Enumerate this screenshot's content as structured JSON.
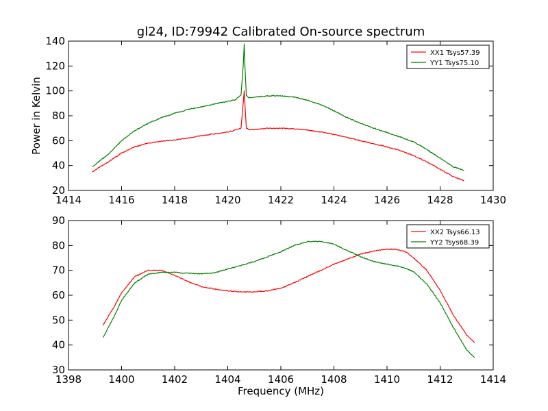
{
  "figure": {
    "title": "gl24, ID:79942 Calibrated On-source spectrum",
    "xlabel": "Frequency (MHz)"
  },
  "chart_data": [
    {
      "type": "line",
      "title": "gl24, ID:79942 Calibrated On-source spectrum",
      "xlabel": "",
      "ylabel": "Power in Kelvin",
      "xlim": [
        1414,
        1430
      ],
      "ylim": [
        20,
        140
      ],
      "xticks": [
        1414,
        1416,
        1418,
        1420,
        1422,
        1424,
        1426,
        1428,
        1430
      ],
      "yticks": [
        20,
        40,
        60,
        80,
        100,
        120,
        140
      ],
      "grid": false,
      "legend_position": "top-right",
      "series": [
        {
          "name": "XX1 Tsys57.39",
          "color": "#ff0000",
          "x": [
            1414.9,
            1415.5,
            1416.0,
            1416.5,
            1417.0,
            1417.5,
            1418.0,
            1418.5,
            1419.0,
            1419.5,
            1420.0,
            1420.3,
            1420.5,
            1420.58,
            1420.62,
            1420.65,
            1420.7,
            1420.8,
            1421.0,
            1421.5,
            1422.0,
            1422.5,
            1423.0,
            1423.5,
            1424.0,
            1424.5,
            1425.0,
            1425.5,
            1426.0,
            1426.5,
            1427.0,
            1427.5,
            1428.0,
            1428.5,
            1428.9
          ],
          "y": [
            35,
            43,
            50,
            55,
            58,
            59.5,
            60.5,
            62,
            64,
            65.5,
            67,
            68.5,
            70,
            90,
            100,
            88,
            70,
            69,
            69,
            70,
            70,
            69.5,
            68.5,
            67,
            65,
            62.5,
            60,
            57.5,
            55,
            52,
            48,
            43,
            37,
            31,
            28
          ]
        },
        {
          "name": "YY1 Tsys75.10",
          "color": "#008000",
          "x": [
            1414.9,
            1415.5,
            1416.0,
            1416.5,
            1417.0,
            1417.5,
            1418.0,
            1418.5,
            1419.0,
            1419.5,
            1420.0,
            1420.3,
            1420.5,
            1420.58,
            1420.62,
            1420.65,
            1420.7,
            1420.8,
            1421.0,
            1421.5,
            1422.0,
            1422.5,
            1423.0,
            1423.5,
            1424.0,
            1424.5,
            1425.0,
            1425.5,
            1426.0,
            1426.5,
            1427.0,
            1427.5,
            1428.0,
            1428.5,
            1428.9
          ],
          "y": [
            39,
            49,
            60,
            68,
            74,
            78.5,
            82,
            85,
            87,
            89.5,
            91.5,
            93,
            97,
            120,
            138,
            118,
            96,
            94.5,
            95,
            96,
            96,
            95,
            92.5,
            89,
            84,
            78.5,
            74,
            70,
            66.5,
            63,
            59,
            53,
            46,
            39,
            36
          ]
        }
      ]
    },
    {
      "type": "line",
      "title": "",
      "xlabel": "Frequency (MHz)",
      "ylabel": "",
      "xlim": [
        1398,
        1414
      ],
      "ylim": [
        30,
        90
      ],
      "xticks": [
        1398,
        1400,
        1402,
        1404,
        1406,
        1408,
        1410,
        1412,
        1414
      ],
      "yticks": [
        30,
        40,
        50,
        60,
        70,
        80,
        90
      ],
      "grid": false,
      "legend_position": "top-right",
      "series": [
        {
          "name": "XX2 Tsys66.13",
          "color": "#ff0000",
          "x": [
            1399.3,
            1399.7,
            1400.0,
            1400.5,
            1401.0,
            1401.5,
            1402.0,
            1402.5,
            1403.0,
            1403.5,
            1404.0,
            1404.5,
            1405.0,
            1405.5,
            1406.0,
            1406.5,
            1407.0,
            1407.5,
            1408.0,
            1408.5,
            1409.0,
            1409.5,
            1410.0,
            1410.3,
            1410.7,
            1411.0,
            1411.5,
            1412.0,
            1412.5,
            1413.0,
            1413.3
          ],
          "y": [
            48,
            55,
            61,
            67.5,
            70,
            70,
            68,
            65.5,
            63.5,
            62.5,
            61.8,
            61.3,
            61.3,
            61.8,
            62.8,
            65,
            67.5,
            70,
            72.5,
            74.5,
            76.5,
            77.8,
            78.5,
            78.5,
            77.5,
            75,
            70,
            62,
            52,
            44,
            41
          ]
        },
        {
          "name": "YY2 Tsys68.39",
          "color": "#008000",
          "x": [
            1399.3,
            1399.7,
            1400.0,
            1400.5,
            1401.0,
            1401.5,
            1402.0,
            1402.5,
            1403.0,
            1403.5,
            1404.0,
            1404.5,
            1405.0,
            1405.5,
            1406.0,
            1406.5,
            1407.0,
            1407.5,
            1408.0,
            1408.5,
            1409.0,
            1409.5,
            1410.0,
            1410.5,
            1411.0,
            1411.5,
            1412.0,
            1412.5,
            1413.0,
            1413.3
          ],
          "y": [
            43,
            51,
            58,
            65,
            68.5,
            69.2,
            69.2,
            68.8,
            68.6,
            69,
            70.5,
            72,
            73.5,
            75.5,
            77.5,
            80,
            81.5,
            81.7,
            80.5,
            78,
            75.5,
            73.5,
            72.5,
            71.5,
            69.5,
            64.5,
            57,
            47,
            38,
            35
          ]
        }
      ]
    }
  ]
}
